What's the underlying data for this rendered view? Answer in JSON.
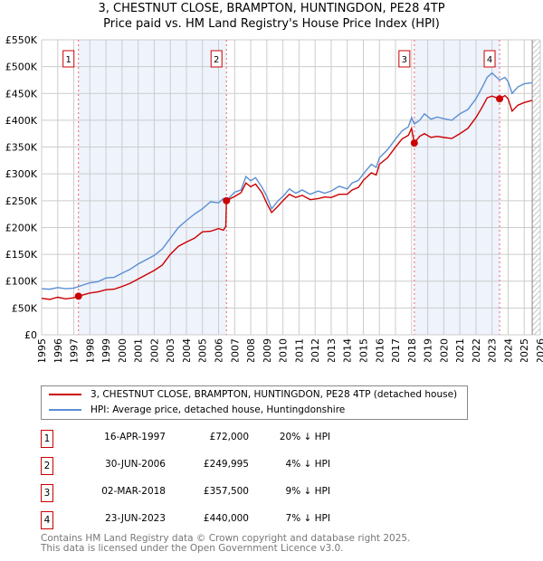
{
  "title": "3, CHESTNUT CLOSE, BRAMPTON, HUNTINGDON, PE28 4TP",
  "subtitle": "Price paid vs. HM Land Registry's House Price Index (HPI)",
  "chart_data": {
    "type": "line",
    "xlim": [
      1995,
      2026
    ],
    "ylim": [
      0,
      550000
    ],
    "x_ticks": [
      "1995",
      "1996",
      "1997",
      "1998",
      "1999",
      "2000",
      "2001",
      "2002",
      "2003",
      "2004",
      "2005",
      "2006",
      "2007",
      "2008",
      "2009",
      "2010",
      "2011",
      "2012",
      "2013",
      "2014",
      "2015",
      "2016",
      "2017",
      "2018",
      "2019",
      "2020",
      "2021",
      "2022",
      "2023",
      "2024",
      "2025",
      "2026"
    ],
    "y_ticks": [
      {
        "v": 0,
        "label": "£0"
      },
      {
        "v": 50000,
        "label": "£50K"
      },
      {
        "v": 100000,
        "label": "£100K"
      },
      {
        "v": 150000,
        "label": "£150K"
      },
      {
        "v": 200000,
        "label": "£200K"
      },
      {
        "v": 250000,
        "label": "£250K"
      },
      {
        "v": 300000,
        "label": "£300K"
      },
      {
        "v": 350000,
        "label": "£350K"
      },
      {
        "v": 400000,
        "label": "£400K"
      },
      {
        "v": 450000,
        "label": "£450K"
      },
      {
        "v": 500000,
        "label": "£500K"
      },
      {
        "v": 550000,
        "label": "£550K"
      }
    ],
    "hatch_from": 2025.5,
    "series": [
      {
        "name": "3, CHESTNUT CLOSE, BRAMPTON, HUNTINGDON, PE28 4TP (detached house)",
        "color": "#cc0000",
        "points": [
          [
            1995,
            68000
          ],
          [
            1995.5,
            66000
          ],
          [
            1996,
            70000
          ],
          [
            1996.5,
            67000
          ],
          [
            1997,
            69000
          ],
          [
            1997.29,
            72000
          ],
          [
            1998,
            78000
          ],
          [
            1998.5,
            80000
          ],
          [
            1999,
            84000
          ],
          [
            1999.5,
            85000
          ],
          [
            2000,
            90000
          ],
          [
            2000.5,
            96000
          ],
          [
            2001,
            104000
          ],
          [
            2001.5,
            112000
          ],
          [
            2002,
            120000
          ],
          [
            2002.5,
            130000
          ],
          [
            2003,
            150000
          ],
          [
            2003.5,
            165000
          ],
          [
            2004,
            173000
          ],
          [
            2004.5,
            180000
          ],
          [
            2005,
            192000
          ],
          [
            2005.5,
            193000
          ],
          [
            2006,
            198000
          ],
          [
            2006.3,
            195000
          ],
          [
            2006.45,
            202000
          ],
          [
            2006.49,
            249995
          ],
          [
            2007,
            258000
          ],
          [
            2007.4,
            265000
          ],
          [
            2007.7,
            283000
          ],
          [
            2008,
            276000
          ],
          [
            2008.3,
            281000
          ],
          [
            2008.7,
            265000
          ],
          [
            2009,
            245000
          ],
          [
            2009.3,
            228000
          ],
          [
            2009.7,
            240000
          ],
          [
            2010,
            250000
          ],
          [
            2010.4,
            262000
          ],
          [
            2010.8,
            256000
          ],
          [
            2011.2,
            260000
          ],
          [
            2011.7,
            252000
          ],
          [
            2012.2,
            254000
          ],
          [
            2012.6,
            257000
          ],
          [
            2013,
            256000
          ],
          [
            2013.5,
            262000
          ],
          [
            2014,
            262000
          ],
          [
            2014.3,
            270000
          ],
          [
            2014.7,
            275000
          ],
          [
            2015,
            288000
          ],
          [
            2015.5,
            302000
          ],
          [
            2015.8,
            298000
          ],
          [
            2016,
            318000
          ],
          [
            2016.5,
            330000
          ],
          [
            2017,
            350000
          ],
          [
            2017.4,
            365000
          ],
          [
            2017.8,
            372000
          ],
          [
            2018,
            385000
          ],
          [
            2018.17,
            357500
          ],
          [
            2018.5,
            370000
          ],
          [
            2018.8,
            375000
          ],
          [
            2019.2,
            368000
          ],
          [
            2019.6,
            370000
          ],
          [
            2020,
            368000
          ],
          [
            2020.5,
            366000
          ],
          [
            2021,
            375000
          ],
          [
            2021.5,
            385000
          ],
          [
            2022,
            405000
          ],
          [
            2022.4,
            425000
          ],
          [
            2022.7,
            442000
          ],
          [
            2023,
            445000
          ],
          [
            2023.47,
            440000
          ],
          [
            2023.8,
            446000
          ],
          [
            2024,
            440000
          ],
          [
            2024.25,
            417000
          ],
          [
            2024.6,
            428000
          ],
          [
            2025,
            433000
          ],
          [
            2025.5,
            437000
          ]
        ]
      },
      {
        "name": "HPI: Average price, detached house, Huntingdonshire",
        "color": "#5b8fd4",
        "points": [
          [
            1995,
            86000
          ],
          [
            1995.5,
            85000
          ],
          [
            1996,
            88000
          ],
          [
            1996.5,
            86000
          ],
          [
            1997,
            87000
          ],
          [
            1997.29,
            90000
          ],
          [
            1998,
            97000
          ],
          [
            1998.5,
            99000
          ],
          [
            1999,
            106000
          ],
          [
            1999.5,
            107000
          ],
          [
            2000,
            115000
          ],
          [
            2000.5,
            122000
          ],
          [
            2001,
            132000
          ],
          [
            2001.5,
            140000
          ],
          [
            2002,
            148000
          ],
          [
            2002.5,
            160000
          ],
          [
            2003,
            180000
          ],
          [
            2003.5,
            200000
          ],
          [
            2004,
            213000
          ],
          [
            2004.5,
            225000
          ],
          [
            2005,
            235000
          ],
          [
            2005.5,
            248000
          ],
          [
            2006,
            246000
          ],
          [
            2006.3,
            254000
          ],
          [
            2006.49,
            250000
          ],
          [
            2007,
            266000
          ],
          [
            2007.4,
            270000
          ],
          [
            2007.7,
            295000
          ],
          [
            2008,
            287000
          ],
          [
            2008.3,
            293000
          ],
          [
            2008.7,
            275000
          ],
          [
            2009,
            258000
          ],
          [
            2009.3,
            235000
          ],
          [
            2009.7,
            250000
          ],
          [
            2010,
            258000
          ],
          [
            2010.4,
            272000
          ],
          [
            2010.8,
            264000
          ],
          [
            2011.2,
            270000
          ],
          [
            2011.7,
            262000
          ],
          [
            2012.2,
            268000
          ],
          [
            2012.6,
            264000
          ],
          [
            2013,
            268000
          ],
          [
            2013.5,
            277000
          ],
          [
            2014,
            272000
          ],
          [
            2014.3,
            283000
          ],
          [
            2014.7,
            288000
          ],
          [
            2015,
            300000
          ],
          [
            2015.5,
            318000
          ],
          [
            2015.8,
            312000
          ],
          [
            2016,
            330000
          ],
          [
            2016.5,
            345000
          ],
          [
            2017,
            365000
          ],
          [
            2017.4,
            380000
          ],
          [
            2017.8,
            388000
          ],
          [
            2018,
            405000
          ],
          [
            2018.17,
            393000
          ],
          [
            2018.5,
            400000
          ],
          [
            2018.8,
            412000
          ],
          [
            2019.2,
            402000
          ],
          [
            2019.6,
            406000
          ],
          [
            2020,
            403000
          ],
          [
            2020.5,
            400000
          ],
          [
            2021,
            412000
          ],
          [
            2021.5,
            420000
          ],
          [
            2022,
            440000
          ],
          [
            2022.4,
            462000
          ],
          [
            2022.7,
            480000
          ],
          [
            2023,
            488000
          ],
          [
            2023.47,
            475000
          ],
          [
            2023.8,
            480000
          ],
          [
            2024,
            472000
          ],
          [
            2024.25,
            450000
          ],
          [
            2024.6,
            462000
          ],
          [
            2025,
            468000
          ],
          [
            2025.5,
            470000
          ]
        ]
      }
    ],
    "sales": [
      {
        "n": "1",
        "x": 1997.29,
        "y": 72000,
        "date": "16-APR-1997",
        "price": "£72,000",
        "pct": "20% ↓ HPI"
      },
      {
        "n": "2",
        "x": 2006.49,
        "y": 249995,
        "date": "30-JUN-2006",
        "price": "£249,995",
        "pct": "4% ↓ HPI"
      },
      {
        "n": "3",
        "x": 2018.17,
        "y": 357500,
        "date": "02-MAR-2018",
        "price": "£357,500",
        "pct": "9% ↓ HPI"
      },
      {
        "n": "4",
        "x": 2023.47,
        "y": 440000,
        "date": "23-JUN-2023",
        "price": "£440,000",
        "pct": "7% ↓ HPI"
      }
    ]
  },
  "footer": [
    "Contains HM Land Registry data © Crown copyright and database right 2025.",
    "This data is licensed under the Open Government Licence v3.0."
  ]
}
